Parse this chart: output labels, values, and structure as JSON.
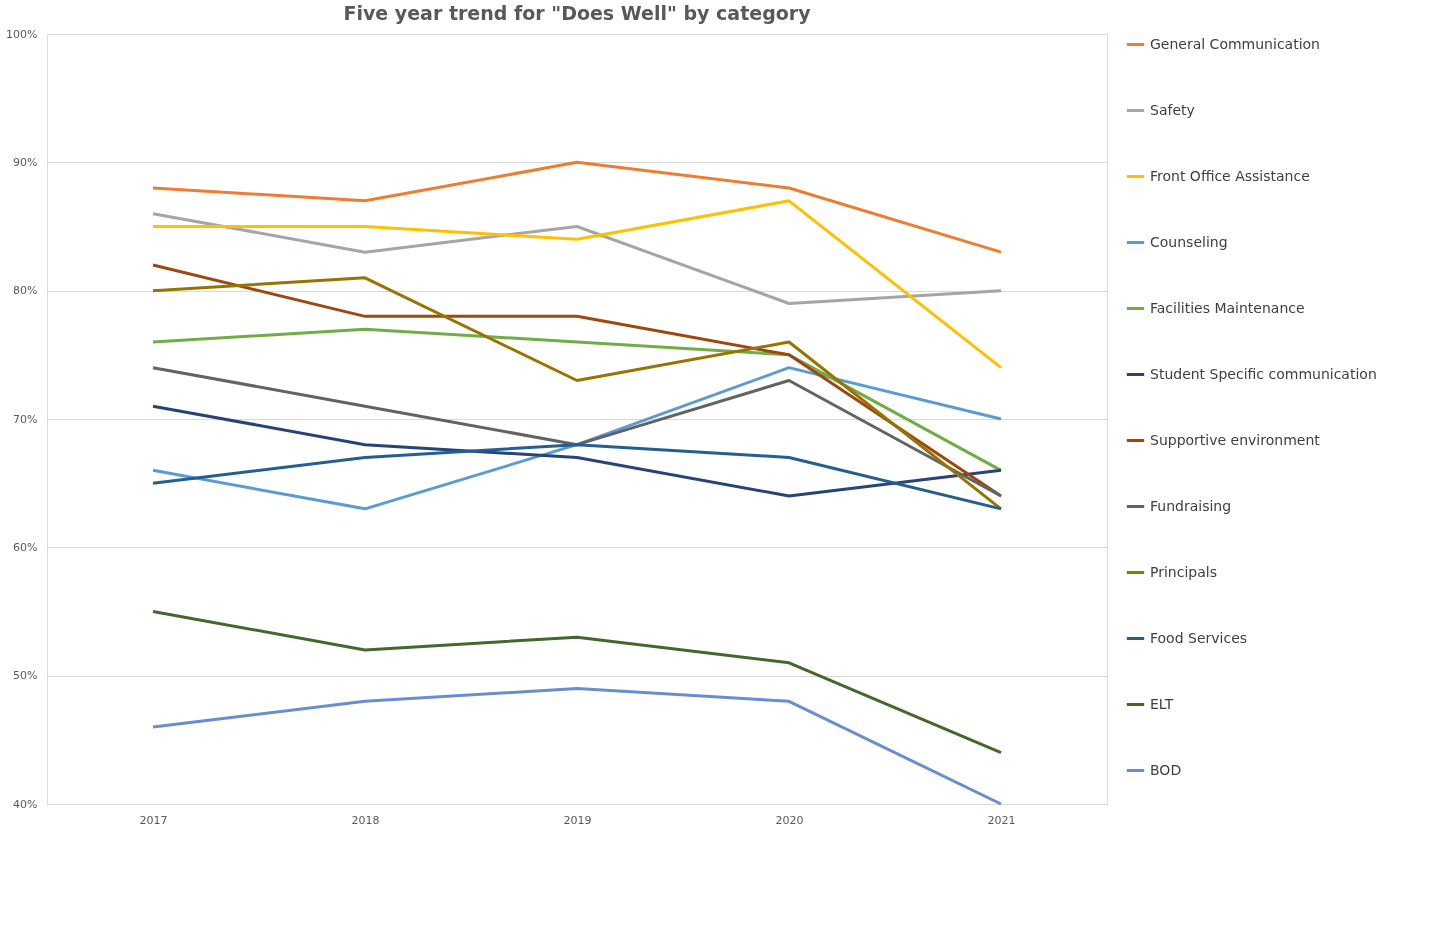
{
  "chart_data": {
    "type": "line",
    "title": "Five year trend for \"Does Well\" by category",
    "categories": [
      "2017",
      "2018",
      "2019",
      "2020",
      "2021"
    ],
    "series": [
      {
        "name": "General Communication",
        "color": "#ed7d31",
        "values": [
          88,
          87,
          90,
          88,
          83
        ]
      },
      {
        "name": "Safety",
        "color": "#a5a5a5",
        "values": [
          86,
          83,
          85,
          79,
          80
        ]
      },
      {
        "name": "Front Office Assistance",
        "color": "#ffc000",
        "values": [
          85,
          85,
          84,
          87,
          74
        ]
      },
      {
        "name": "Counseling",
        "color": "#5b9bd5",
        "values": [
          66,
          63,
          68,
          74,
          70
        ]
      },
      {
        "name": "Facilities Maintenance",
        "color": "#70ad47",
        "values": [
          76,
          77,
          76,
          75,
          66
        ]
      },
      {
        "name": "Student Specific communication",
        "color": "#264478",
        "values": [
          71,
          68,
          67,
          64,
          66
        ]
      },
      {
        "name": "Supportive environment",
        "color": "#9e480e",
        "values": [
          82,
          78,
          78,
          75,
          64
        ]
      },
      {
        "name": "Fundraising",
        "color": "#636363",
        "values": [
          74,
          71,
          68,
          73,
          64
        ]
      },
      {
        "name": "Principals",
        "color": "#997300",
        "values": [
          80,
          81,
          73,
          76,
          63
        ]
      },
      {
        "name": "Food Services",
        "color": "#255e91",
        "values": [
          65,
          67,
          68,
          67,
          63
        ]
      },
      {
        "name": "ELT",
        "color": "#43682b",
        "values": [
          55,
          52,
          53,
          51,
          44
        ]
      },
      {
        "name": "BOD",
        "color": "#698ed0",
        "values": [
          46,
          48,
          49,
          48,
          40
        ]
      }
    ],
    "ylim": [
      40,
      100
    ],
    "yticks": [
      {
        "value": 40,
        "label": "40%"
      },
      {
        "value": 50,
        "label": "50%"
      },
      {
        "value": 60,
        "label": "60%"
      },
      {
        "value": 70,
        "label": "70%"
      },
      {
        "value": 80,
        "label": "80%"
      },
      {
        "value": 90,
        "label": "90%"
      },
      {
        "value": 100,
        "label": "100%"
      }
    ],
    "grid": "y",
    "legend": "right",
    "marker": "none",
    "line_style": "solid"
  }
}
